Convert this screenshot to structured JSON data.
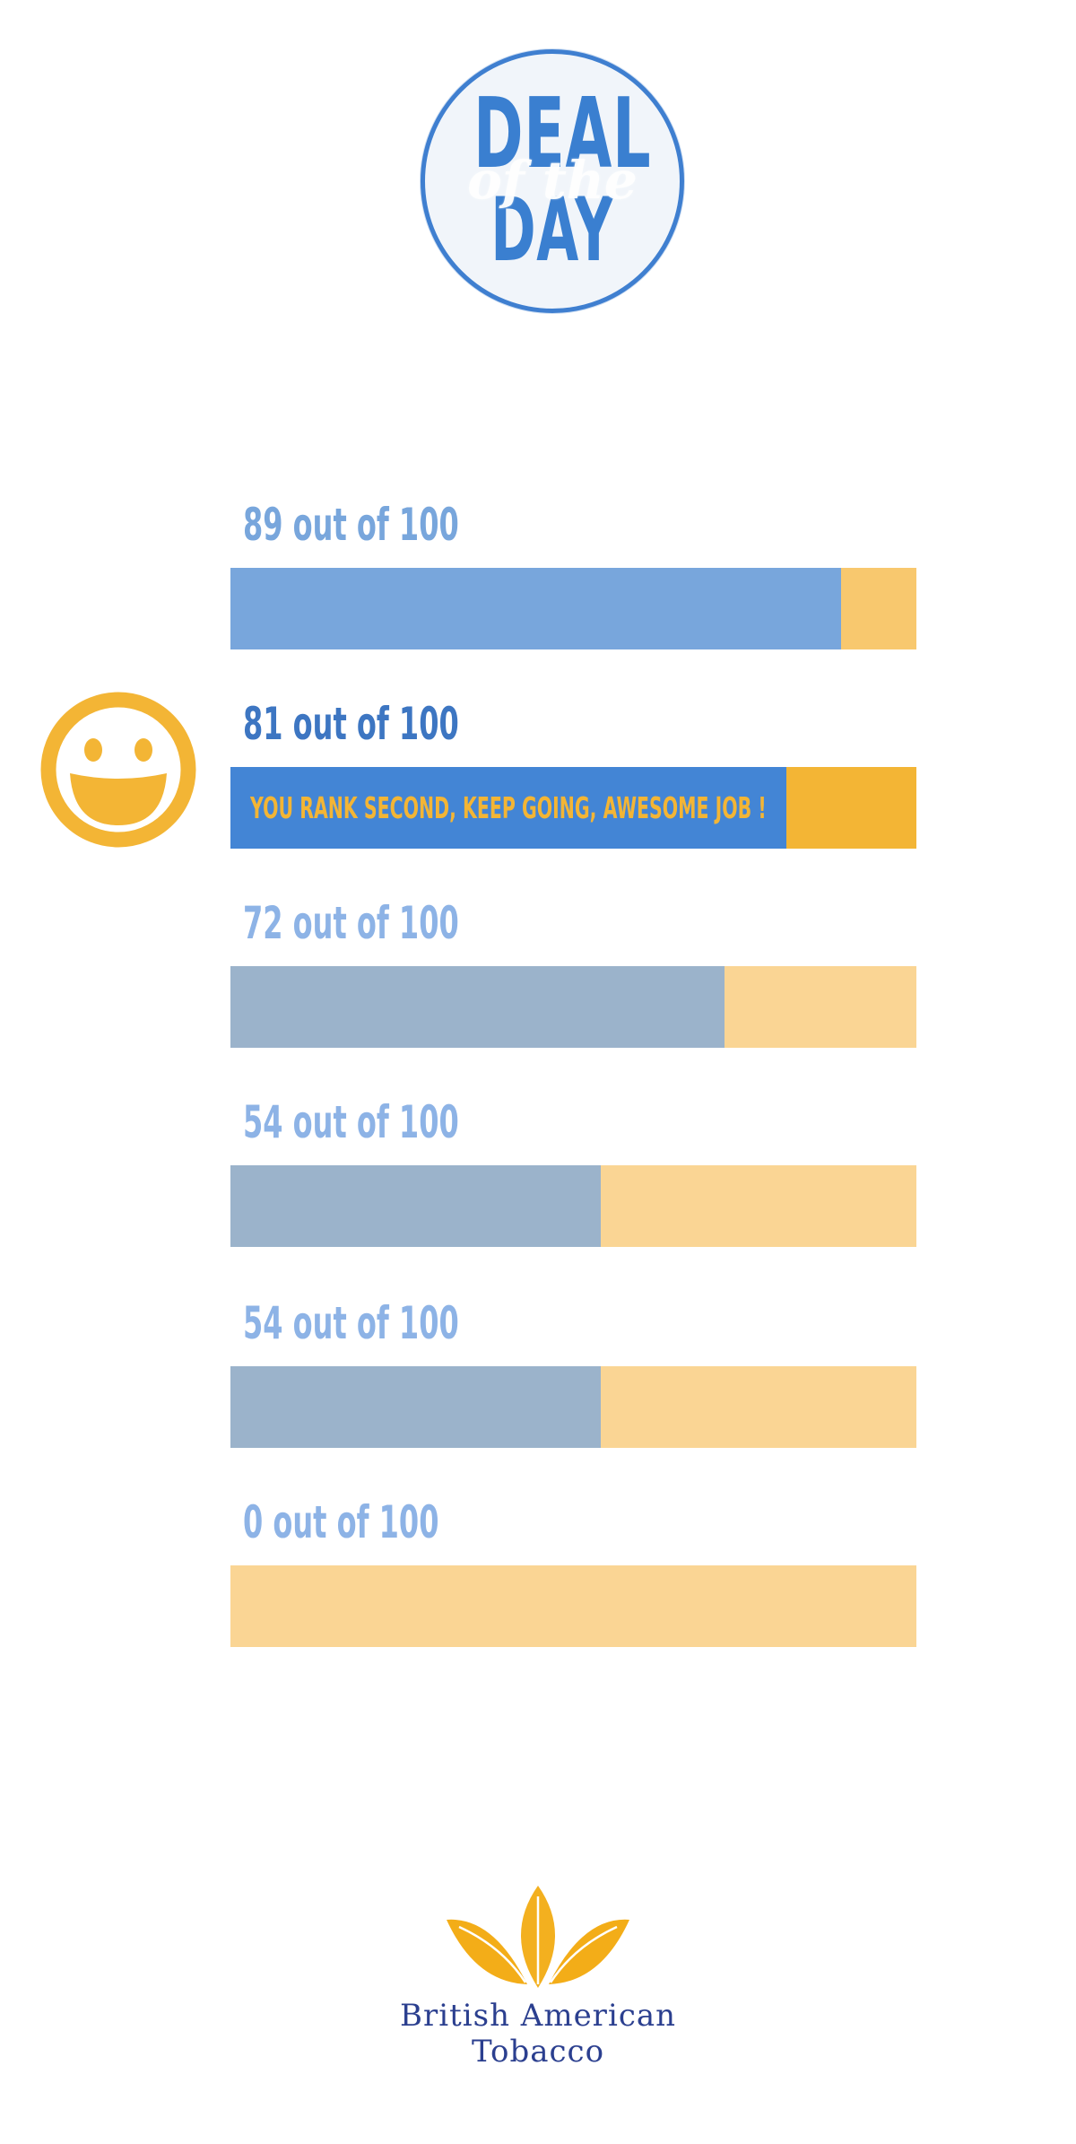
{
  "badge": {
    "line1": "DEAL",
    "line2": "of the",
    "line3": "DAY"
  },
  "message": "YOU RANK SECOND, KEEP GOING, AWESOME JOB !",
  "scores": [
    {
      "label": "89 out of 100",
      "value": 89,
      "max": 100
    },
    {
      "label": "81 out of 100",
      "value": 81,
      "max": 100
    },
    {
      "label": "72 out of 100",
      "value": 72,
      "max": 100
    },
    {
      "label": "54 out of 100",
      "value": 54,
      "max": 100
    },
    {
      "label": "54 out of 100",
      "value": 54,
      "max": 100
    },
    {
      "label": "0 out of 100",
      "value": 0,
      "max": 100
    }
  ],
  "colors": {
    "top_fill": "#78a6dc",
    "top_track": "#f8c86e",
    "current_fill": "#4385d5",
    "current_track": "#f3b535",
    "current_label": "#3d76c2",
    "current_message": "#f3b535",
    "other_fill": "#9bb3cb",
    "other_track": "#fad594",
    "label": "#8db3e6",
    "top_label": "#78a6dc",
    "smiley": "#f3b535",
    "logo_gold": "#f3ad18",
    "logo_blue": "#2b3f8f"
  },
  "icons": {
    "smiley": "smiley-face-icon",
    "logo": "tobacco-leaf-logo"
  },
  "logo": {
    "line1": "British American",
    "line2": "Tobacco"
  }
}
